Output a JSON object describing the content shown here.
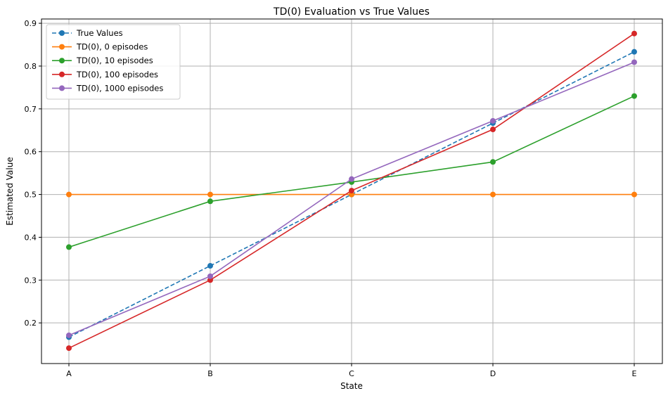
{
  "chart_data": {
    "type": "line",
    "title": "TD(0) Evaluation vs True Values",
    "xlabel": "State",
    "ylabel": "Estimated Value",
    "categories": [
      "A",
      "B",
      "C",
      "D",
      "E"
    ],
    "ylim": [
      0.105,
      0.91
    ],
    "yticks": [
      0.2,
      0.3,
      0.4,
      0.5,
      0.6,
      0.7,
      0.8,
      0.9
    ],
    "grid": true,
    "legend_position": "top-left",
    "series": [
      {
        "name": "True Values",
        "color": "#1f77b4",
        "dashed": true,
        "values": [
          0.1667,
          0.3333,
          0.5,
          0.6667,
          0.8333
        ]
      },
      {
        "name": "TD(0), 0 episodes",
        "color": "#ff7f0e",
        "dashed": false,
        "values": [
          0.5,
          0.5,
          0.5,
          0.5,
          0.5
        ]
      },
      {
        "name": "TD(0), 10 episodes",
        "color": "#2ca02c",
        "dashed": false,
        "values": [
          0.377,
          0.484,
          0.529,
          0.576,
          0.73
        ]
      },
      {
        "name": "TD(0), 100 episodes",
        "color": "#d62728",
        "dashed": false,
        "values": [
          0.141,
          0.3,
          0.509,
          0.652,
          0.876
        ]
      },
      {
        "name": "TD(0), 1000 episodes",
        "color": "#9467bd",
        "dashed": false,
        "values": [
          0.171,
          0.309,
          0.536,
          0.672,
          0.809
        ]
      }
    ]
  }
}
